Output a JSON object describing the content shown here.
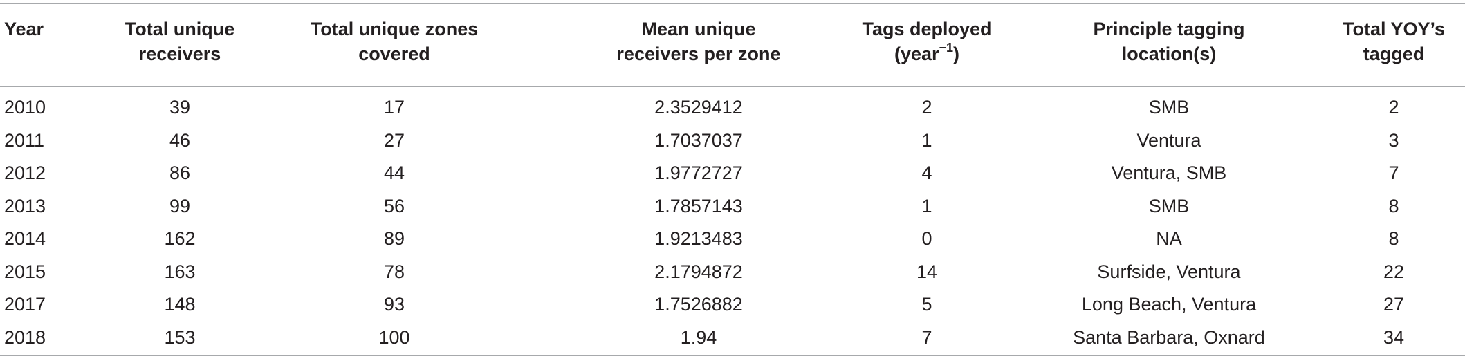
{
  "table": {
    "headers": [
      {
        "line1": "Year",
        "line2": ""
      },
      {
        "line1": "Total unique",
        "line2": "receivers"
      },
      {
        "line1": "Total unique zones",
        "line2": "covered"
      },
      {
        "line1": "Mean unique",
        "line2": "receivers per zone"
      },
      {
        "line1": "Tags deployed",
        "line2": "(year",
        "sup": "−1",
        "line2_end": ")"
      },
      {
        "line1": "Principle tagging",
        "line2": "location(s)"
      },
      {
        "line1": "Total YOY’s",
        "line2": "tagged"
      }
    ],
    "rows": [
      [
        "2010",
        "39",
        "17",
        "2.3529412",
        "2",
        "SMB",
        "2"
      ],
      [
        "2011",
        "46",
        "27",
        "1.7037037",
        "1",
        "Ventura",
        "3"
      ],
      [
        "2012",
        "86",
        "44",
        "1.9772727",
        "4",
        "Ventura, SMB",
        "7"
      ],
      [
        "2013",
        "99",
        "56",
        "1.7857143",
        "1",
        "SMB",
        "8"
      ],
      [
        "2014",
        "162",
        "89",
        "1.9213483",
        "0",
        "NA",
        "8"
      ],
      [
        "2015",
        "163",
        "78",
        "2.1794872",
        "14",
        "Surfside, Ventura",
        "22"
      ],
      [
        "2017",
        "148",
        "93",
        "1.7526882",
        "5",
        "Long Beach, Ventura",
        "27"
      ],
      [
        "2018",
        "153",
        "100",
        "1.94",
        "7",
        "Santa Barbara, Oxnard",
        "34"
      ]
    ]
  }
}
